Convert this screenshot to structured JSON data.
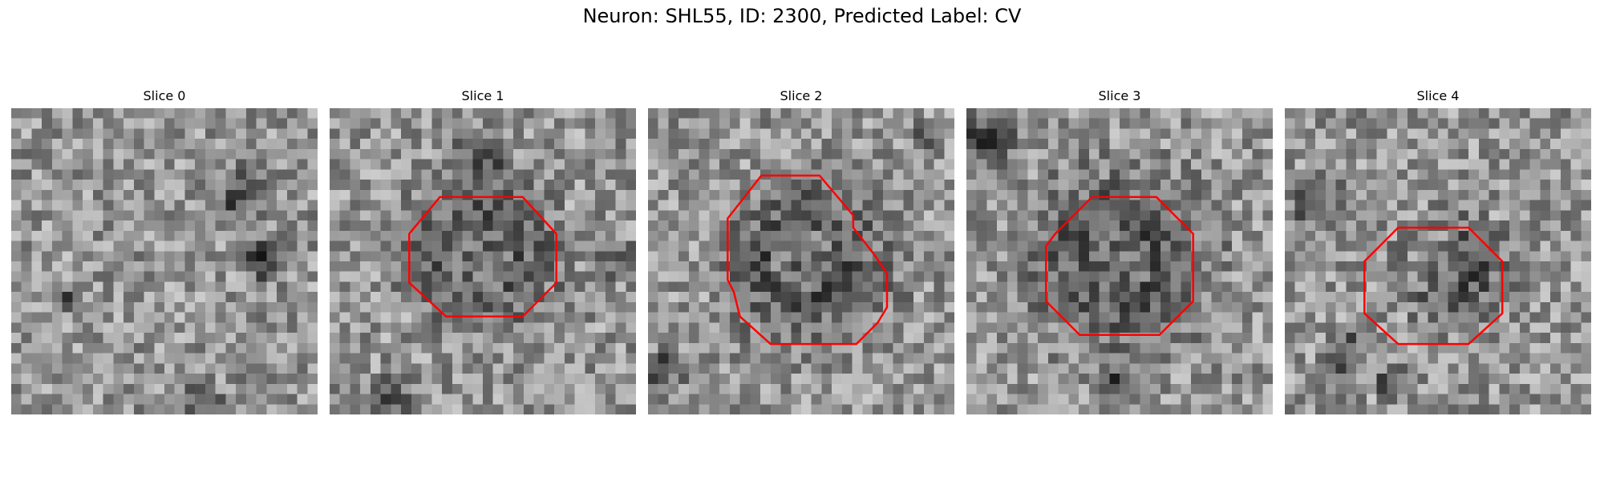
{
  "figure": {
    "title": "Neuron: SHL55, ID: 2300, Predicted Label: CV"
  },
  "contour_color": "#ff0000",
  "colormap": "gray",
  "panels": [
    {
      "title": "Slice 0",
      "has_contour": false,
      "dark_blobs": [
        [
          0.75,
          0.28,
          0.08
        ],
        [
          0.82,
          0.5,
          0.06
        ],
        [
          0.62,
          0.95,
          0.05
        ],
        [
          0.17,
          0.62,
          0.04
        ]
      ],
      "seed": 11
    },
    {
      "title": "Slice 1",
      "has_contour": true,
      "contour": [
        [
          0.36,
          0.29
        ],
        [
          0.63,
          0.29
        ],
        [
          0.74,
          0.41
        ],
        [
          0.74,
          0.57
        ],
        [
          0.63,
          0.68
        ],
        [
          0.38,
          0.68
        ],
        [
          0.26,
          0.57
        ],
        [
          0.26,
          0.41
        ]
      ],
      "dark_blobs": [
        [
          0.5,
          0.48,
          0.2
        ],
        [
          0.5,
          0.15,
          0.07
        ],
        [
          0.2,
          0.95,
          0.06
        ],
        [
          0.95,
          0.5,
          0.05
        ]
      ],
      "seed": 23
    },
    {
      "title": "Slice 2",
      "has_contour": true,
      "contour": [
        [
          0.37,
          0.22
        ],
        [
          0.56,
          0.22
        ],
        [
          0.67,
          0.35
        ],
        [
          0.67,
          0.39
        ],
        [
          0.74,
          0.48
        ],
        [
          0.78,
          0.54
        ],
        [
          0.78,
          0.65
        ],
        [
          0.75,
          0.7
        ],
        [
          0.68,
          0.77
        ],
        [
          0.4,
          0.77
        ],
        [
          0.3,
          0.68
        ],
        [
          0.28,
          0.6
        ],
        [
          0.26,
          0.56
        ],
        [
          0.26,
          0.36
        ]
      ],
      "dark_blobs": [
        [
          0.52,
          0.5,
          0.22
        ],
        [
          0.9,
          0.1,
          0.04
        ],
        [
          0.05,
          0.85,
          0.05
        ]
      ],
      "seed": 37
    },
    {
      "title": "Slice 3",
      "has_contour": true,
      "contour": [
        [
          0.41,
          0.29
        ],
        [
          0.62,
          0.29
        ],
        [
          0.74,
          0.41
        ],
        [
          0.74,
          0.63
        ],
        [
          0.63,
          0.74
        ],
        [
          0.37,
          0.74
        ],
        [
          0.26,
          0.63
        ],
        [
          0.26,
          0.45
        ],
        [
          0.29,
          0.41
        ]
      ],
      "dark_blobs": [
        [
          0.5,
          0.5,
          0.24
        ],
        [
          0.05,
          0.1,
          0.09
        ],
        [
          0.5,
          0.92,
          0.06
        ]
      ],
      "seed": 51
    },
    {
      "title": "Slice 4",
      "has_contour": true,
      "contour": [
        [
          0.37,
          0.39
        ],
        [
          0.6,
          0.39
        ],
        [
          0.71,
          0.5
        ],
        [
          0.71,
          0.67
        ],
        [
          0.6,
          0.77
        ],
        [
          0.37,
          0.77
        ],
        [
          0.26,
          0.67
        ],
        [
          0.26,
          0.5
        ]
      ],
      "dark_blobs": [
        [
          0.55,
          0.53,
          0.14
        ],
        [
          0.1,
          0.3,
          0.07
        ],
        [
          0.2,
          0.8,
          0.06
        ],
        [
          0.35,
          0.9,
          0.05
        ]
      ],
      "seed": 67
    }
  ]
}
